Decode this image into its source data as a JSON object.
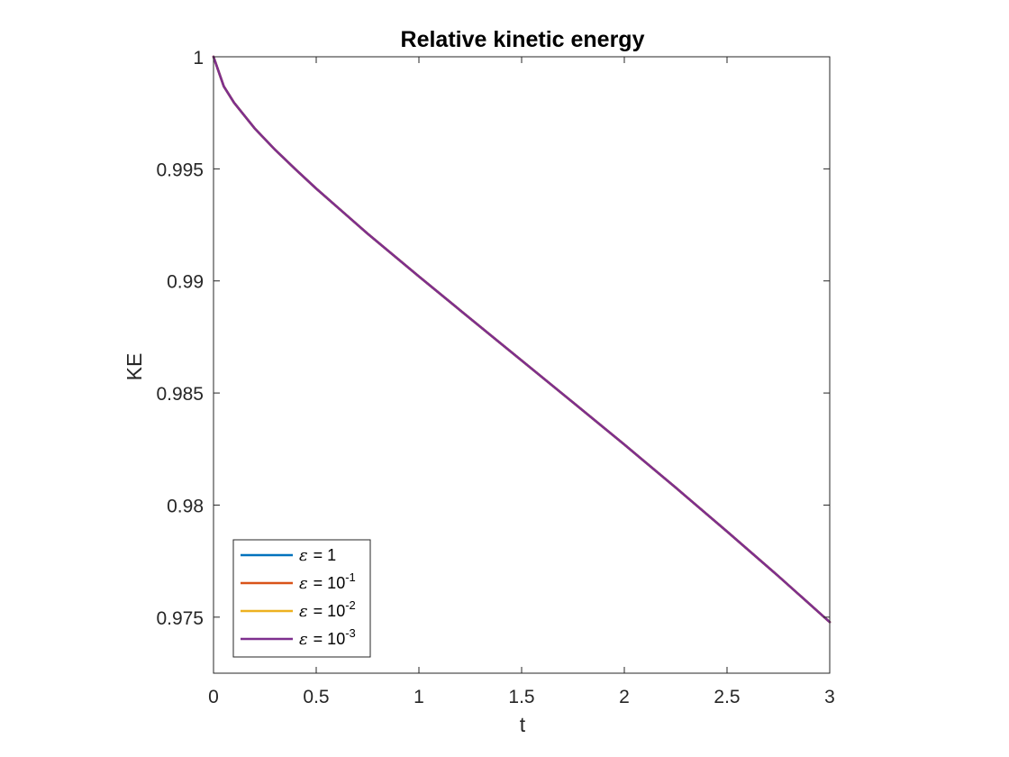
{
  "chart_data": {
    "type": "line",
    "title": "Relative kinetic energy",
    "xlabel": "t",
    "ylabel": "KE",
    "xlim": [
      0,
      3
    ],
    "ylim": [
      0.9725,
      1
    ],
    "x_ticks": [
      "0",
      "0.5",
      "1",
      "1.5",
      "2",
      "2.5",
      "3"
    ],
    "x_tick_values": [
      0,
      0.5,
      1,
      1.5,
      2,
      2.5,
      3
    ],
    "y_ticks": [
      "0.975",
      "0.98",
      "0.985",
      "0.99",
      "0.995",
      "1"
    ],
    "y_tick_values": [
      0.975,
      0.98,
      0.985,
      0.99,
      0.995,
      1
    ],
    "grid": false,
    "legend_position": "bottom-left",
    "x": [
      0,
      0.05,
      0.1,
      0.2,
      0.3,
      0.4,
      0.5,
      0.75,
      1,
      1.25,
      1.5,
      1.75,
      2,
      2.25,
      2.5,
      2.75,
      3
    ],
    "series": [
      {
        "name": "ε = 1",
        "legend_symbol": "ε",
        "legend_base": "= 1",
        "legend_exponent": "",
        "color": "#0072BD",
        "values": [
          1.0,
          0.99868,
          0.99795,
          0.99681,
          0.99585,
          0.99497,
          0.99412,
          0.99211,
          0.9902,
          0.98832,
          0.98645,
          0.98458,
          0.9827,
          0.98078,
          0.97882,
          0.97683,
          0.97478
        ]
      },
      {
        "name": "ε = 10-1",
        "legend_symbol": "ε",
        "legend_base": "= 10",
        "legend_exponent": "-1",
        "color": "#D95319",
        "values": [
          1.0,
          0.99868,
          0.99795,
          0.99681,
          0.99585,
          0.99497,
          0.99412,
          0.99211,
          0.9902,
          0.98832,
          0.98645,
          0.98458,
          0.9827,
          0.98078,
          0.97882,
          0.97683,
          0.97478
        ]
      },
      {
        "name": "ε = 10-2",
        "legend_symbol": "ε",
        "legend_base": "= 10",
        "legend_exponent": "-2",
        "color": "#EDB120",
        "values": [
          1.0,
          0.99868,
          0.99795,
          0.99681,
          0.99585,
          0.99497,
          0.99412,
          0.99211,
          0.9902,
          0.98832,
          0.98645,
          0.98458,
          0.9827,
          0.98078,
          0.97882,
          0.97683,
          0.97478
        ]
      },
      {
        "name": "ε = 10-3",
        "legend_symbol": "ε",
        "legend_base": "= 10",
        "legend_exponent": "-3",
        "color": "#7E2F8E",
        "values": [
          1.0,
          0.99868,
          0.99795,
          0.99681,
          0.99585,
          0.99497,
          0.99412,
          0.99211,
          0.9902,
          0.98832,
          0.98645,
          0.98458,
          0.9827,
          0.98078,
          0.97882,
          0.97683,
          0.97478
        ]
      }
    ]
  }
}
